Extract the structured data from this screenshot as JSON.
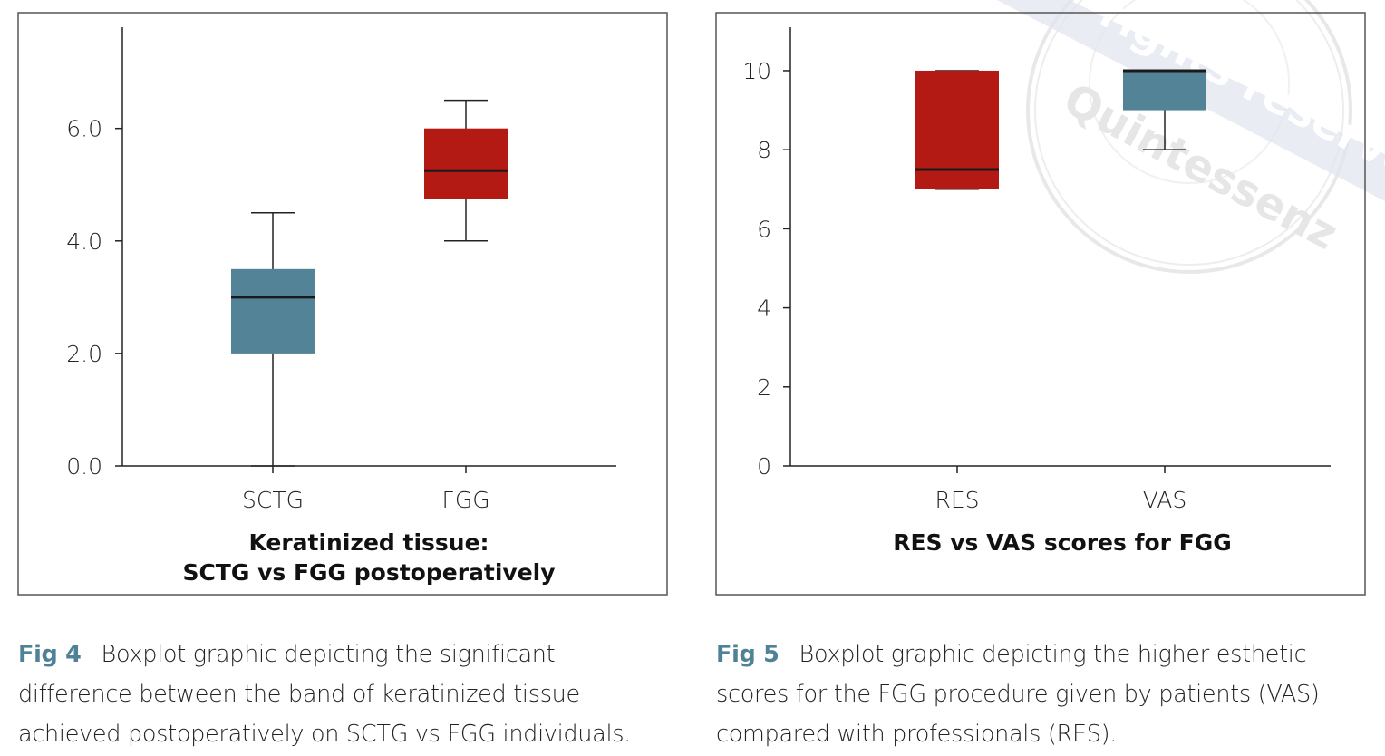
{
  "colors": {
    "red": "#b41a14",
    "teal": "#538397",
    "median": "#1a1a1a",
    "caption_accent": "#4f8197"
  },
  "watermark": {
    "text1": "rights reserved",
    "text2": "Quintessenz"
  },
  "chart_data": [
    {
      "type": "boxplot",
      "title_lines": [
        "Keratinized tissue:",
        "SCTG vs FGG postoperatively"
      ],
      "xlabel": "",
      "ylabel": "",
      "ylim": [
        0,
        7.8
      ],
      "yticks": [
        0,
        2,
        4,
        6
      ],
      "ytick_labels": [
        "0.0",
        "2.0",
        "4.0",
        "6.0"
      ],
      "categories": [
        "SCTG",
        "FGG"
      ],
      "boxes": [
        {
          "name": "SCTG",
          "min": 0,
          "q1": 2.0,
          "median": 3.0,
          "q3": 3.5,
          "max": 4.5,
          "color": "#538397"
        },
        {
          "name": "FGG",
          "min": 4.0,
          "q1": 4.75,
          "median": 5.25,
          "q3": 6.0,
          "max": 6.5,
          "color": "#b41a14"
        }
      ],
      "grid": false
    },
    {
      "type": "boxplot",
      "title_lines": [
        "RES vs VAS scores for FGG"
      ],
      "xlabel": "",
      "ylabel": "",
      "ylim": [
        0,
        11.1
      ],
      "yticks": [
        0,
        2,
        4,
        6,
        8,
        10
      ],
      "ytick_labels": [
        "0",
        "2",
        "4",
        "6",
        "8",
        "10"
      ],
      "categories": [
        "RES",
        "VAS"
      ],
      "boxes": [
        {
          "name": "RES",
          "min": 7,
          "q1": 7,
          "median": 7.5,
          "q3": 10,
          "max": 10,
          "color": "#b41a14"
        },
        {
          "name": "VAS",
          "min": 8,
          "q1": 9,
          "median": 10,
          "q3": 10,
          "max": 10,
          "color": "#538397"
        }
      ],
      "grid": false
    }
  ],
  "captions": [
    {
      "label": "Fig 4",
      "text": "Boxplot graphic depicting the significant difference between the band of keratinized tissue achieved postoperatively on SCTG vs FGG individuals."
    },
    {
      "label": "Fig 5",
      "text": "Boxplot graphic depicting the higher esthetic scores for the FGG procedure given by patients (VAS) compared with professionals (RES)."
    }
  ]
}
